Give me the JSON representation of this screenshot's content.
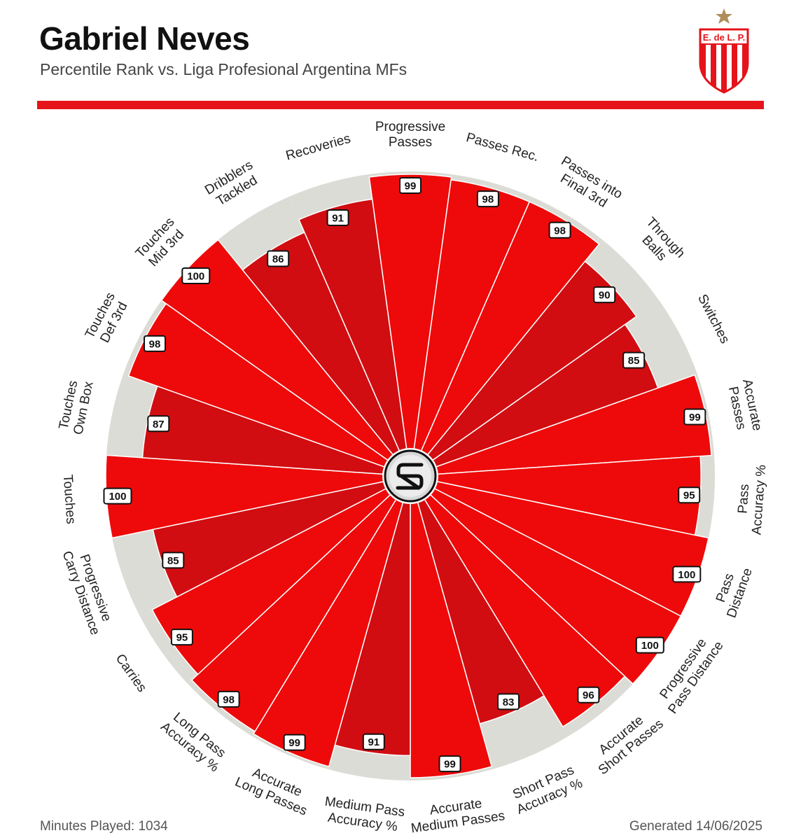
{
  "header": {
    "player_name": "Gabriel Neves",
    "subtitle": "Percentile Rank vs. Liga Profesional Argentina MFs"
  },
  "logo": {
    "text": "E. de L. P.",
    "icon": "club-crest-icon",
    "colors": {
      "red": "#e5141b",
      "white": "#ffffff",
      "star": "#b08d5b"
    }
  },
  "center_icon": "sd-logo-icon",
  "footer": {
    "minutes": "Minutes Played: 1034",
    "generated": "Generated 14/06/2025"
  },
  "colors": {
    "bright_red": "#ee0a0a",
    "dark_red": "#d10d11",
    "track": "#dcdcd6",
    "accent": "#e5141b"
  },
  "chart_data": {
    "type": "radial-bar",
    "scale_max": 100,
    "series": [
      {
        "values": [
          99,
          98,
          98,
          90,
          85,
          99,
          95,
          100,
          100,
          96,
          83,
          99,
          91,
          99,
          98,
          95,
          85,
          100,
          87,
          98,
          100,
          86,
          91
        ]
      }
    ],
    "categories": [
      [
        "Progressive",
        "Passes"
      ],
      [
        "Passes Rec."
      ],
      [
        "Passes into",
        "Final 3rd"
      ],
      [
        "Through",
        "Balls"
      ],
      [
        "Switches"
      ],
      [
        "Accurate",
        "Passes"
      ],
      [
        "Pass",
        "Accuracy %"
      ],
      [
        "Pass",
        "Distance"
      ],
      [
        "Progressive",
        "Pass Distance"
      ],
      [
        "Accurate",
        "Short Passes"
      ],
      [
        "Short Pass",
        "Accuracy %"
      ],
      [
        "Accurate",
        "Medium Passes"
      ],
      [
        "Medium Pass",
        "Accuracy %"
      ],
      [
        "Accurate",
        "Long Passes"
      ],
      [
        "Long Pass",
        "Accuracy %"
      ],
      [
        "Carries"
      ],
      [
        "Progressive",
        "Carry Distance"
      ],
      [
        "Touches"
      ],
      [
        "Touches",
        "Own Box"
      ],
      [
        "Touches",
        "Def 3rd"
      ],
      [
        "Touches",
        "Mid 3rd"
      ],
      [
        "Dribblers",
        "Tackled"
      ],
      [
        "Recoveries"
      ]
    ]
  }
}
